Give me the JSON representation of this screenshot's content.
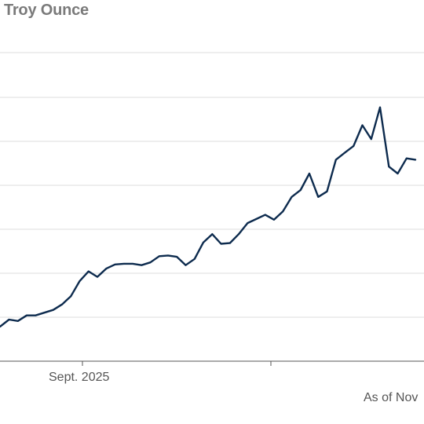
{
  "colors": {
    "line": "#0d2b4e",
    "grid": "#dcdcdc",
    "axis": "#555555",
    "title": "#7a7a7a"
  },
  "chart_data": {
    "type": "line",
    "title": "r Troy Ounce",
    "xlabel": "",
    "ylabel": "",
    "x_tick_labels": [
      "Sept. 2025"
    ],
    "footnote": "As of Nov",
    "grid": true,
    "series": [
      {
        "values": [
          36.2,
          36.4,
          36.9,
          36.8,
          37.2,
          37.2,
          37.4,
          37.6,
          38.0,
          38.6,
          39.7,
          40.4,
          40.0,
          40.6,
          40.9,
          40.95,
          40.95,
          40.85,
          41.05,
          41.5,
          41.55,
          41.45,
          40.85,
          41.3,
          42.5,
          43.1,
          42.4,
          42.45,
          43.1,
          43.9,
          44.2,
          44.5,
          44.15,
          44.75,
          45.8,
          46.3,
          47.5,
          45.8,
          46.2,
          48.5,
          49.0,
          49.5,
          51.0,
          50.0,
          52.3,
          48.0,
          47.5,
          48.6,
          48.5
        ]
      }
    ]
  }
}
